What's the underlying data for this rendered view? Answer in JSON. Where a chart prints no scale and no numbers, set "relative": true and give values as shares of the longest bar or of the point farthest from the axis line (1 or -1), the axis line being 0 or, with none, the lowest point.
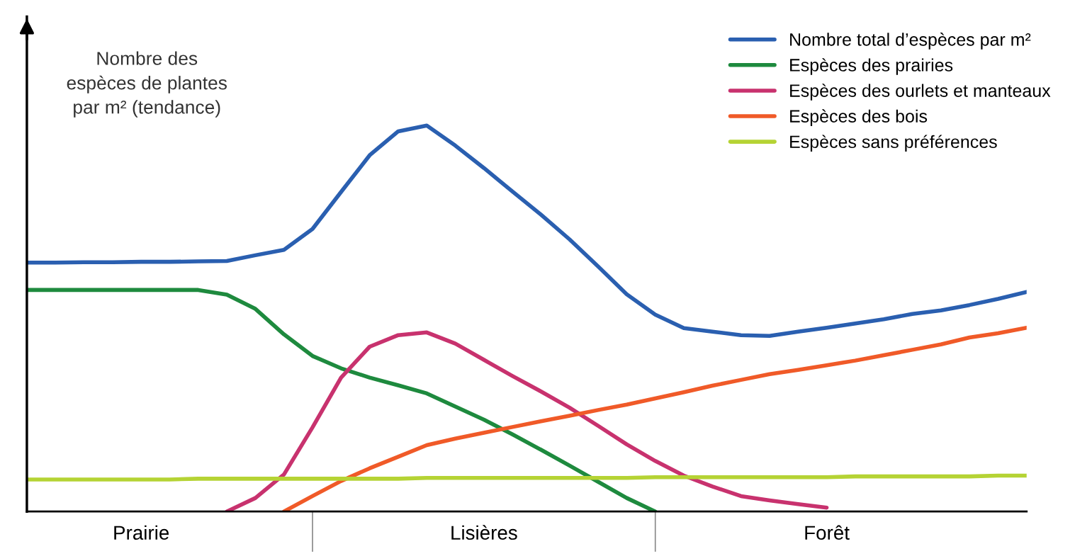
{
  "chart_data": {
    "type": "line",
    "relative": true,
    "ylabel": "Nombre des\nespèces de plantes\npar m² (tendance)",
    "categories": [
      null,
      null,
      null,
      null,
      "Prairie",
      null,
      null,
      null,
      null,
      null,
      null,
      null,
      null,
      null,
      null,
      null,
      "Lisières",
      null,
      null,
      null,
      null,
      null,
      null,
      null,
      null,
      null,
      null,
      null,
      "Forêt",
      null,
      null,
      null,
      null,
      null,
      null,
      null
    ],
    "legend": "top right",
    "marker": "none",
    "line_style": "solid",
    "series": [
      {
        "name": "Nombre total d’espèces par m²",
        "color": "#2a5fb0",
        "values": [
          0.645,
          0.645,
          0.646,
          0.646,
          0.647,
          0.647,
          0.648,
          0.649,
          0.664,
          0.678,
          0.732,
          0.828,
          0.923,
          0.985,
          1.0,
          0.948,
          0.89,
          0.829,
          0.769,
          0.705,
          0.635,
          0.563,
          0.51,
          0.475,
          0.466,
          0.457,
          0.455,
          0.466,
          0.476,
          0.487,
          0.498,
          0.512,
          0.521,
          0.535,
          0.551,
          0.569
        ]
      },
      {
        "name": "Espèces des prairies",
        "color": "#1e8a3e",
        "values": [
          0.574,
          0.574,
          0.574,
          0.574,
          0.574,
          0.574,
          0.574,
          0.562,
          0.525,
          0.459,
          0.403,
          0.371,
          0.347,
          0.327,
          0.306,
          0.272,
          0.238,
          0.2,
          0.16,
          0.119,
          0.077,
          0.035,
          0,
          null,
          null,
          null,
          null,
          null,
          null,
          null,
          null,
          null,
          null,
          null,
          null,
          null
        ]
      },
      {
        "name": "Espèces des ourlets et manteaux",
        "color": "#c8326e",
        "values": [
          null,
          null,
          null,
          null,
          null,
          null,
          null,
          0,
          0.035,
          0.096,
          0.218,
          0.347,
          0.427,
          0.457,
          0.464,
          0.435,
          0.393,
          0.351,
          0.311,
          0.269,
          0.222,
          0.174,
          0.131,
          0.093,
          0.065,
          0.04,
          0.029,
          0.019,
          0.01,
          null,
          null,
          null,
          null,
          null,
          null,
          null
        ]
      },
      {
        "name": "Espèces des bois",
        "color": "#f05a28",
        "values": [
          null,
          null,
          null,
          null,
          null,
          null,
          null,
          null,
          null,
          0,
          0.04,
          0.079,
          0.112,
          0.142,
          0.172,
          0.189,
          0.204,
          0.219,
          0.234,
          0.248,
          0.263,
          0.277,
          0.293,
          0.309,
          0.326,
          0.341,
          0.356,
          0.367,
          0.379,
          0.391,
          0.405,
          0.419,
          0.433,
          0.451,
          0.462,
          0.476
        ]
      },
      {
        "name": "Espèces sans préférences",
        "color": "#b5d334",
        "values": [
          0.083,
          0.083,
          0.083,
          0.083,
          0.083,
          0.083,
          0.085,
          0.085,
          0.085,
          0.085,
          0.085,
          0.085,
          0.085,
          0.085,
          0.087,
          0.087,
          0.087,
          0.087,
          0.087,
          0.087,
          0.087,
          0.087,
          0.089,
          0.089,
          0.089,
          0.089,
          0.089,
          0.089,
          0.089,
          0.091,
          0.091,
          0.091,
          0.091,
          0.091,
          0.093,
          0.093
        ]
      }
    ]
  }
}
